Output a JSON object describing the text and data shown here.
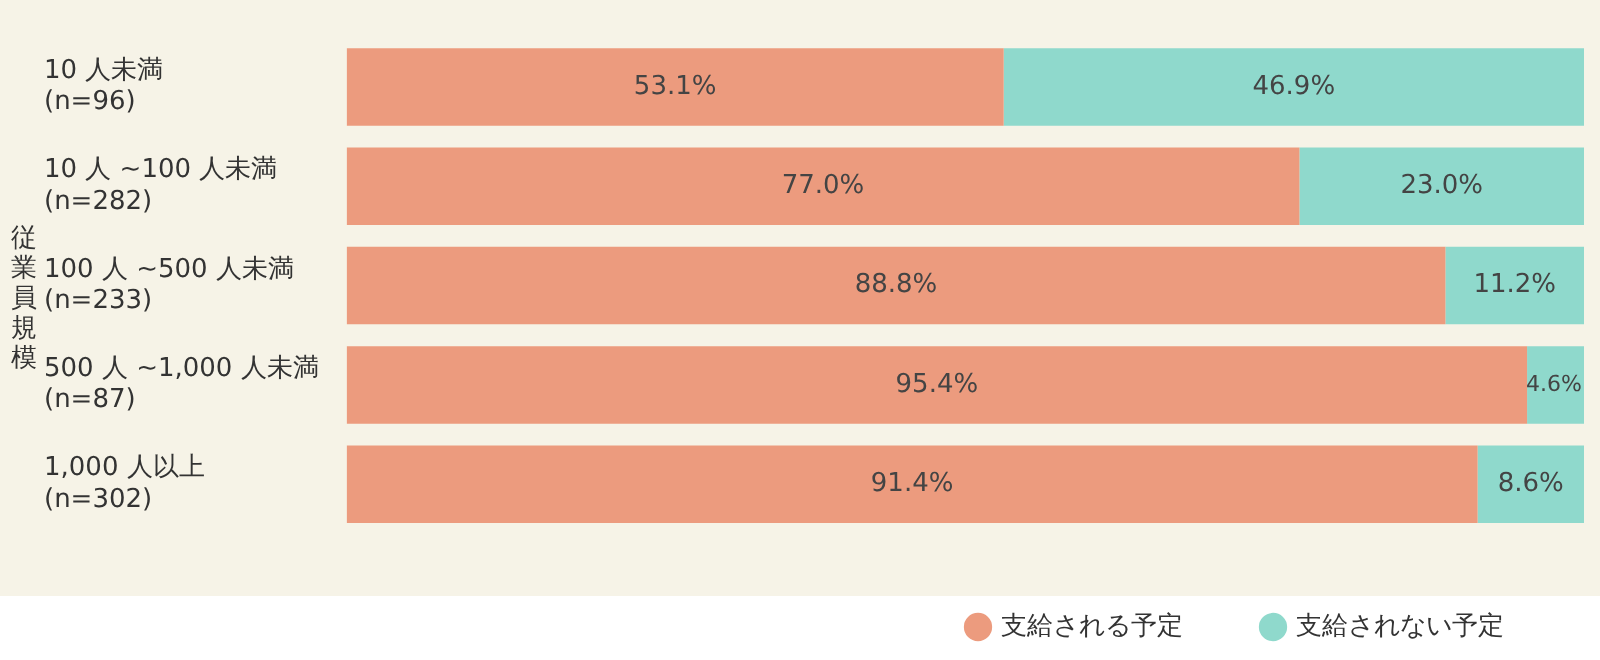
{
  "chart_data": {
    "type": "bar",
    "orientation": "horizontal",
    "stacked": true,
    "ylabel": "従業員規模",
    "categories": [
      "10 人未満\n(n=96)",
      "10 人 ~100 人未満\n(n=282)",
      "100 人 ~500 人未満\n(n=233)",
      "500 人 ~1,000 人未満\n(n=87)",
      "1,000 人以上\n(n=302)"
    ],
    "series": [
      {
        "name": "支給される予定",
        "color": "#ec9b7e",
        "values": [
          53.1,
          77.0,
          88.8,
          95.4,
          91.4
        ],
        "value_labels": [
          "53.1%",
          "77.0%",
          "88.8%",
          "95.4%",
          "91.4%"
        ]
      },
      {
        "name": "支給されない予定",
        "color": "#8fd9cc",
        "values": [
          46.9,
          23.0,
          11.2,
          4.6,
          8.6
        ],
        "value_labels": [
          "46.9%",
          "23.0%",
          "11.2%",
          "4.6%",
          "8.6%"
        ]
      }
    ],
    "xlim": [
      0,
      100
    ],
    "tick_labels": "y",
    "grid": false,
    "legend": "bottom right"
  }
}
